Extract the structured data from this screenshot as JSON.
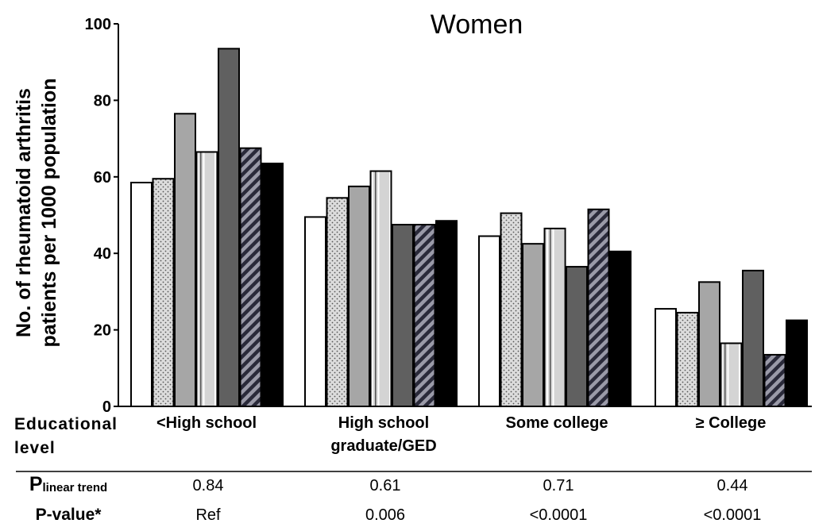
{
  "chart_data": {
    "type": "bar",
    "title": "Women",
    "ylabel_lines": [
      "No. of rheumatoid arthritis",
      "patients per 1000 population"
    ],
    "ylim": [
      0,
      100
    ],
    "yticks": [
      "0",
      "20",
      "40",
      "60",
      "80",
      "100"
    ],
    "x_axis_title_lines": [
      "Educational",
      "level"
    ],
    "categories": [
      [
        "<High school"
      ],
      [
        "High school",
        "graduate/GED"
      ],
      [
        "Some college"
      ],
      [
        "≥ College"
      ]
    ],
    "series": [
      {
        "fill": "#ffffff",
        "pattern": "none",
        "values": [
          58.5,
          49.5,
          44.5,
          25.5
        ]
      },
      {
        "fill": "#d9d9d9",
        "pattern": "dots",
        "values": [
          59.5,
          54.5,
          50.5,
          24.5
        ]
      },
      {
        "fill": "#a6a6a6",
        "pattern": "none",
        "values": [
          76.5,
          57.5,
          42.5,
          32.5
        ]
      },
      {
        "fill": "#d4d4d4",
        "pattern": "vertical-lines",
        "values": [
          66.5,
          61.5,
          46.5,
          16.5
        ]
      },
      {
        "fill": "#606060",
        "pattern": "none",
        "values": [
          93.5,
          47.5,
          36.5,
          35.5
        ]
      },
      {
        "fill": "#8c8c8c",
        "pattern": "diagonal-stripes",
        "values": [
          67.5,
          47.5,
          51.5,
          13.5
        ]
      },
      {
        "fill": "#000000",
        "pattern": "none",
        "values": [
          63.5,
          48.5,
          40.5,
          22.5
        ]
      }
    ],
    "stats_rows": [
      {
        "label_main": "P",
        "label_sub": "linear trend",
        "values": [
          "0.84",
          "0.61",
          "0.71",
          "0.44"
        ]
      },
      {
        "label_main": "P-value*",
        "label_sub": "",
        "values": [
          "Ref",
          "0.006",
          "<0.0001",
          "<0.0001"
        ]
      }
    ]
  }
}
